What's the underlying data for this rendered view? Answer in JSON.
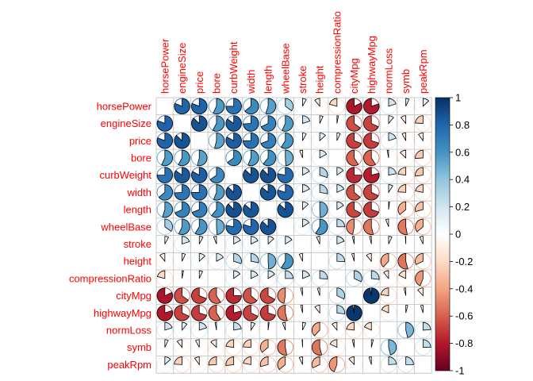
{
  "chart_data": {
    "type": "heatmap",
    "style": "pie-correlation-matrix",
    "labels": [
      "horsePower",
      "engineSize",
      "price",
      "bore",
      "curbWeight",
      "width",
      "length",
      "wheelBase",
      "stroke",
      "height",
      "compressionRatio",
      "cityMpg",
      "highwayMpg",
      "normLoss",
      "symb",
      "peakRpm"
    ],
    "matrix": [
      [
        1.0,
        0.81,
        0.81,
        0.57,
        0.75,
        0.64,
        0.55,
        0.35,
        0.08,
        -0.11,
        -0.21,
        -0.82,
        -0.8,
        0.2,
        0.07,
        0.13
      ],
      [
        0.81,
        1.0,
        0.87,
        0.58,
        0.85,
        0.74,
        0.68,
        0.57,
        0.2,
        0.07,
        0.03,
        -0.65,
        -0.68,
        0.11,
        -0.11,
        -0.24
      ],
      [
        0.81,
        0.87,
        1.0,
        0.54,
        0.83,
        0.75,
        0.69,
        0.59,
        0.08,
        0.13,
        0.07,
        -0.69,
        -0.7,
        0.2,
        -0.08,
        -0.1
      ],
      [
        0.57,
        0.58,
        0.54,
        1.0,
        0.65,
        0.56,
        0.61,
        0.49,
        -0.06,
        0.17,
        0.0,
        -0.59,
        -0.59,
        -0.03,
        -0.13,
        -0.26
      ],
      [
        0.75,
        0.85,
        0.83,
        0.65,
        1.0,
        0.87,
        0.88,
        0.78,
        0.17,
        0.3,
        0.15,
        -0.75,
        -0.79,
        0.22,
        -0.23,
        -0.27
      ],
      [
        0.64,
        0.74,
        0.75,
        0.56,
        0.87,
        1.0,
        0.86,
        0.8,
        0.18,
        0.28,
        0.18,
        -0.64,
        -0.68,
        0.09,
        -0.24,
        -0.22
      ],
      [
        0.55,
        0.68,
        0.69,
        0.61,
        0.88,
        0.86,
        1.0,
        0.87,
        0.13,
        0.49,
        0.16,
        -0.67,
        -0.7,
        0.02,
        -0.36,
        -0.29
      ],
      [
        0.35,
        0.57,
        0.59,
        0.49,
        0.78,
        0.8,
        0.87,
        1.0,
        0.16,
        0.59,
        0.25,
        -0.47,
        -0.54,
        -0.06,
        -0.53,
        -0.36
      ],
      [
        0.08,
        0.2,
        0.08,
        -0.06,
        0.17,
        0.18,
        0.13,
        0.16,
        1.0,
        -0.07,
        0.19,
        -0.04,
        -0.04,
        0.07,
        -0.01,
        -0.07
      ],
      [
        -0.11,
        0.07,
        0.13,
        0.17,
        0.3,
        0.28,
        0.49,
        0.59,
        -0.07,
        1.0,
        0.26,
        -0.05,
        -0.11,
        -0.38,
        -0.54,
        -0.32
      ],
      [
        -0.21,
        0.03,
        0.07,
        0.0,
        0.15,
        0.18,
        0.16,
        0.25,
        0.19,
        0.26,
        1.0,
        0.32,
        0.27,
        -0.11,
        -0.18,
        -0.44
      ],
      [
        -0.82,
        -0.65,
        -0.69,
        -0.59,
        -0.75,
        -0.64,
        -0.67,
        -0.47,
        -0.04,
        -0.05,
        0.32,
        1.0,
        0.97,
        -0.23,
        -0.04,
        -0.12
      ],
      [
        -0.8,
        -0.68,
        -0.7,
        -0.59,
        -0.79,
        -0.68,
        -0.7,
        -0.54,
        -0.04,
        -0.11,
        0.27,
        0.97,
        1.0,
        -0.18,
        0.04,
        -0.05
      ],
      [
        0.2,
        0.11,
        0.2,
        -0.03,
        0.22,
        0.09,
        0.02,
        -0.06,
        0.07,
        -0.38,
        -0.11,
        -0.23,
        -0.18,
        1.0,
        0.46,
        0.24
      ],
      [
        0.07,
        -0.11,
        -0.08,
        -0.13,
        -0.23,
        -0.24,
        -0.36,
        -0.53,
        -0.01,
        -0.54,
        -0.18,
        -0.04,
        0.04,
        0.46,
        1.0,
        0.25
      ],
      [
        0.13,
        -0.24,
        -0.1,
        -0.26,
        -0.27,
        -0.22,
        -0.29,
        -0.36,
        -0.07,
        -0.32,
        -0.44,
        -0.12,
        -0.05,
        0.24,
        0.25,
        1.0
      ]
    ],
    "legend": {
      "position": "right",
      "ticks": [
        "1",
        "0.8",
        "0.6",
        "0.4",
        "0.2",
        "0",
        "-0.2",
        "-0.4",
        "-0.6",
        "-0.8",
        "-1"
      ],
      "range": [
        -1,
        1
      ]
    },
    "label_color": "#FF0000",
    "grid": true,
    "colors": {
      "negative_end": "#67001F",
      "neutral": "#FFFFFF",
      "positive_end": "#053061",
      "grid": "#BEBEBE"
    }
  }
}
